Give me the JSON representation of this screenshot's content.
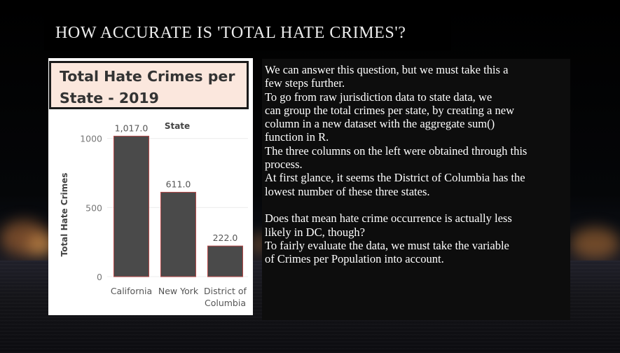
{
  "slide": {
    "title": "HOW ACCURATE IS 'TOTAL HATE CRIMES'?"
  },
  "chart_data": {
    "type": "bar",
    "title_lines": [
      "Total Hate Crimes per",
      "State - 2019"
    ],
    "column_header": "State",
    "ylabel": "Total Hate Crimes",
    "categories": [
      {
        "lines": [
          "California"
        ]
      },
      {
        "lines": [
          "New York"
        ]
      },
      {
        "lines": [
          "District of",
          "Columbia"
        ]
      }
    ],
    "values": [
      1017,
      611,
      222
    ],
    "data_labels": [
      "1,017.0",
      "611.0",
      "222.0"
    ],
    "yticks": [
      0,
      500,
      1000
    ],
    "ytick_labels": [
      "0",
      "500",
      "1000"
    ],
    "ylim": [
      0,
      1100
    ],
    "grid": true,
    "bar_color": "#4a4a4a",
    "bar_edge_color": "#b64a4a"
  },
  "text_panel": {
    "lines": [
      "We can answer this question, but we must take this a",
      "few steps further.",
      "To go from raw jurisdiction data to state data, we",
      "can group the total crimes per state, by creating a new",
      "column in a new dataset with the aggregate sum()",
      "function in R.",
      "The three columns on the left were obtained through this",
      "process.",
      "At first glance, it seems the District of Columbia has the",
      "lowest number of these three states.",
      "",
      "Does that mean hate crime occurrence is actually less",
      "likely in DC, though?",
      "To fairly evaluate the data, we must take the variable",
      "of  Crimes per Population into account."
    ]
  }
}
